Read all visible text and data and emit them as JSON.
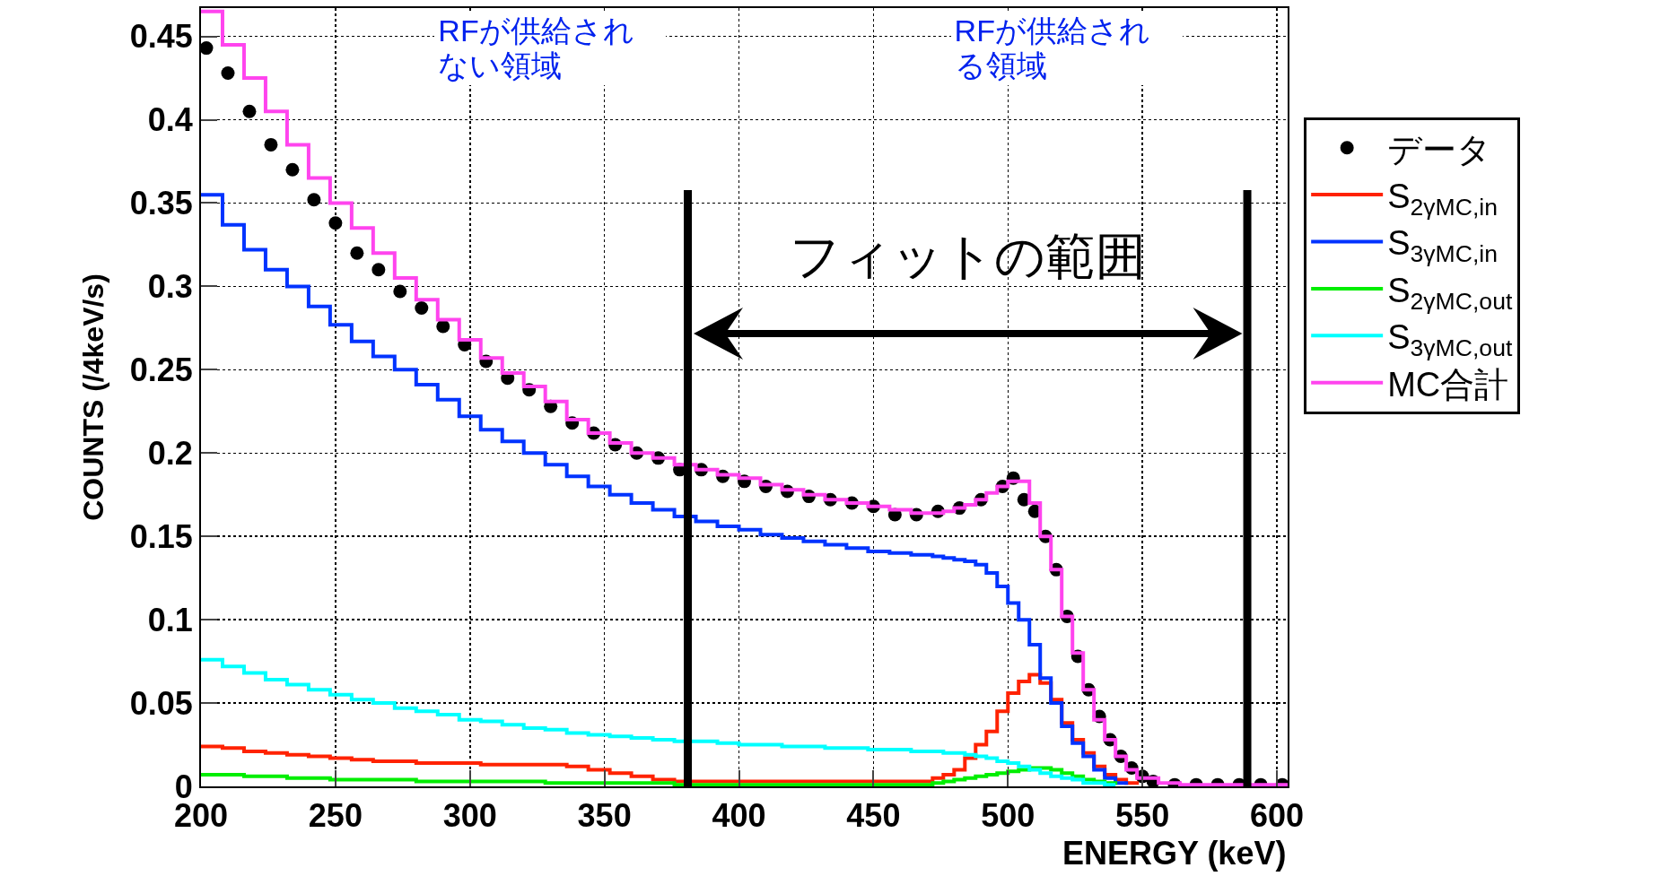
{
  "chart_data": {
    "type": "step",
    "xlabel": "ENERGY (keV)",
    "ylabel": "COUNTS (/4keV/s)",
    "xlim": [
      200,
      604
    ],
    "ylim": [
      0,
      0.467
    ],
    "xticks": [
      200,
      250,
      300,
      350,
      400,
      450,
      500,
      550,
      600
    ],
    "yticks": [
      0,
      0.05,
      0.1,
      0.15,
      0.2,
      0.25,
      0.3,
      0.35,
      0.4,
      0.45
    ],
    "grid": true,
    "legend": "right",
    "line_style": "solid",
    "annotations": [
      "RFが供給されない領域",
      "RFが供給される領域",
      "フィットの範囲"
    ],
    "ref_lines": [
      {
        "axis": "x",
        "value": 381,
        "color": "#000000"
      },
      {
        "axis": "x",
        "value": 589,
        "color": "#000000"
      }
    ],
    "x": [
      200,
      208,
      216,
      224,
      232,
      240,
      248,
      256,
      264,
      272,
      280,
      288,
      296,
      304,
      312,
      320,
      328,
      336,
      344,
      352,
      360,
      368,
      376,
      384,
      392,
      400,
      408,
      416,
      424,
      432,
      440,
      448,
      456,
      464,
      472,
      476,
      480,
      484,
      488,
      492,
      496,
      500,
      504,
      508,
      512,
      516,
      520,
      524,
      528,
      532,
      536,
      540,
      544,
      548,
      556,
      564,
      572,
      580,
      588,
      596,
      604
    ],
    "series": [
      {
        "name": "データ",
        "type": "scatter",
        "marker": "circle",
        "color": "#000000",
        "x": [
          202,
          210,
          218,
          226,
          234,
          242,
          250,
          258,
          266,
          274,
          282,
          290,
          298,
          306,
          314,
          322,
          330,
          338,
          346,
          354,
          362,
          370,
          378,
          386,
          394,
          402,
          410,
          418,
          426,
          434,
          442,
          450,
          458,
          466,
          474,
          482,
          490,
          498,
          502,
          506,
          510,
          514,
          518,
          522,
          526,
          530,
          534,
          538,
          542,
          546,
          550,
          554,
          562,
          570,
          578,
          586,
          594,
          602
        ],
        "values": [
          0.443,
          0.428,
          0.405,
          0.385,
          0.37,
          0.352,
          0.338,
          0.32,
          0.31,
          0.297,
          0.287,
          0.276,
          0.265,
          0.255,
          0.245,
          0.238,
          0.228,
          0.218,
          0.212,
          0.205,
          0.2,
          0.197,
          0.19,
          0.19,
          0.186,
          0.183,
          0.18,
          0.177,
          0.174,
          0.172,
          0.17,
          0.168,
          0.163,
          0.163,
          0.165,
          0.167,
          0.172,
          0.18,
          0.185,
          0.172,
          0.165,
          0.15,
          0.13,
          0.102,
          0.078,
          0.058,
          0.042,
          0.028,
          0.018,
          0.011,
          0.006,
          0.003,
          0.001,
          0.001,
          0.001,
          0.001,
          0.001,
          0.001
        ]
      },
      {
        "name": "S$_{2γMC,in}$",
        "color": "#ff2200",
        "values": [
          0.024,
          0.023,
          0.021,
          0.02,
          0.019,
          0.018,
          0.017,
          0.016,
          0.015,
          0.015,
          0.014,
          0.014,
          0.014,
          0.013,
          0.013,
          0.013,
          0.013,
          0.012,
          0.01,
          0.008,
          0.006,
          0.004,
          0.003,
          0.003,
          0.003,
          0.003,
          0.003,
          0.003,
          0.003,
          0.003,
          0.003,
          0.003,
          0.003,
          0.003,
          0.005,
          0.007,
          0.01,
          0.017,
          0.025,
          0.033,
          0.045,
          0.056,
          0.063,
          0.067,
          0.062,
          0.052,
          0.038,
          0.028,
          0.02,
          0.012,
          0.007,
          0.004,
          0.002,
          0.001,
          null,
          null,
          null,
          null,
          null,
          null,
          null
        ]
      },
      {
        "name": "S$_{3γMC,in}$",
        "color": "#0033ff",
        "values": [
          0.355,
          0.337,
          0.322,
          0.31,
          0.3,
          0.288,
          0.277,
          0.267,
          0.258,
          0.25,
          0.241,
          0.232,
          0.222,
          0.214,
          0.207,
          0.2,
          0.193,
          0.186,
          0.18,
          0.175,
          0.17,
          0.166,
          0.162,
          0.159,
          0.156,
          0.154,
          0.151,
          0.149,
          0.147,
          0.145,
          0.143,
          0.141,
          0.14,
          0.139,
          0.138,
          0.137,
          0.136,
          0.135,
          0.133,
          0.128,
          0.12,
          0.11,
          0.1,
          0.085,
          0.065,
          0.05,
          0.036,
          0.026,
          0.018,
          0.01,
          0.005,
          0.002,
          0.001,
          null,
          null,
          null,
          null,
          null,
          null,
          null,
          null
        ]
      },
      {
        "name": "S$_{2γMC,out}$",
        "color": "#00ee00",
        "values": [
          0.007,
          0.007,
          0.006,
          0.006,
          0.005,
          0.005,
          0.004,
          0.004,
          0.004,
          0.004,
          0.003,
          0.003,
          0.003,
          0.003,
          0.003,
          0.003,
          0.002,
          0.002,
          0.002,
          0.002,
          0.002,
          0.002,
          0.001,
          0.001,
          0.001,
          0.001,
          0.001,
          0.001,
          0.001,
          0.001,
          0.001,
          0.001,
          0.001,
          0.001,
          0.002,
          0.003,
          0.004,
          0.005,
          0.006,
          0.007,
          0.008,
          0.009,
          0.01,
          0.011,
          0.011,
          0.01,
          0.008,
          0.006,
          0.004,
          0.003,
          0.002,
          0.001,
          null,
          null,
          null,
          null,
          null,
          null,
          null,
          null,
          null
        ]
      },
      {
        "name": "S$_{3γMC,out}$",
        "color": "#00ffff",
        "values": [
          0.076,
          0.072,
          0.068,
          0.064,
          0.061,
          0.058,
          0.055,
          0.052,
          0.05,
          0.047,
          0.045,
          0.043,
          0.04,
          0.039,
          0.037,
          0.035,
          0.034,
          0.032,
          0.031,
          0.03,
          0.029,
          0.028,
          0.027,
          0.027,
          0.026,
          0.025,
          0.025,
          0.024,
          0.024,
          0.023,
          0.023,
          0.022,
          0.022,
          0.021,
          0.021,
          0.02,
          0.02,
          0.019,
          0.018,
          0.017,
          0.015,
          0.014,
          0.012,
          0.01,
          0.008,
          0.006,
          0.005,
          0.004,
          0.002,
          0.002,
          0.001,
          0.001,
          null,
          null,
          null,
          null,
          null,
          null,
          null,
          null,
          null
        ]
      },
      {
        "name": "MC合計",
        "color": "#ff44ee",
        "values": [
          0.465,
          0.445,
          0.425,
          0.405,
          0.385,
          0.365,
          0.35,
          0.335,
          0.32,
          0.305,
          0.292,
          0.28,
          0.268,
          0.257,
          0.248,
          0.24,
          0.231,
          0.22,
          0.212,
          0.206,
          0.2,
          0.197,
          0.193,
          0.19,
          0.187,
          0.185,
          0.181,
          0.178,
          0.175,
          0.172,
          0.17,
          0.168,
          0.166,
          0.164,
          0.164,
          0.165,
          0.167,
          0.169,
          0.172,
          0.176,
          0.18,
          0.183,
          0.183,
          0.17,
          0.15,
          0.13,
          0.102,
          0.08,
          0.058,
          0.04,
          0.028,
          0.018,
          0.01,
          0.005,
          0.002,
          0.001,
          0.001,
          0.001,
          0.001,
          0.001,
          0.001
        ]
      }
    ]
  }
}
